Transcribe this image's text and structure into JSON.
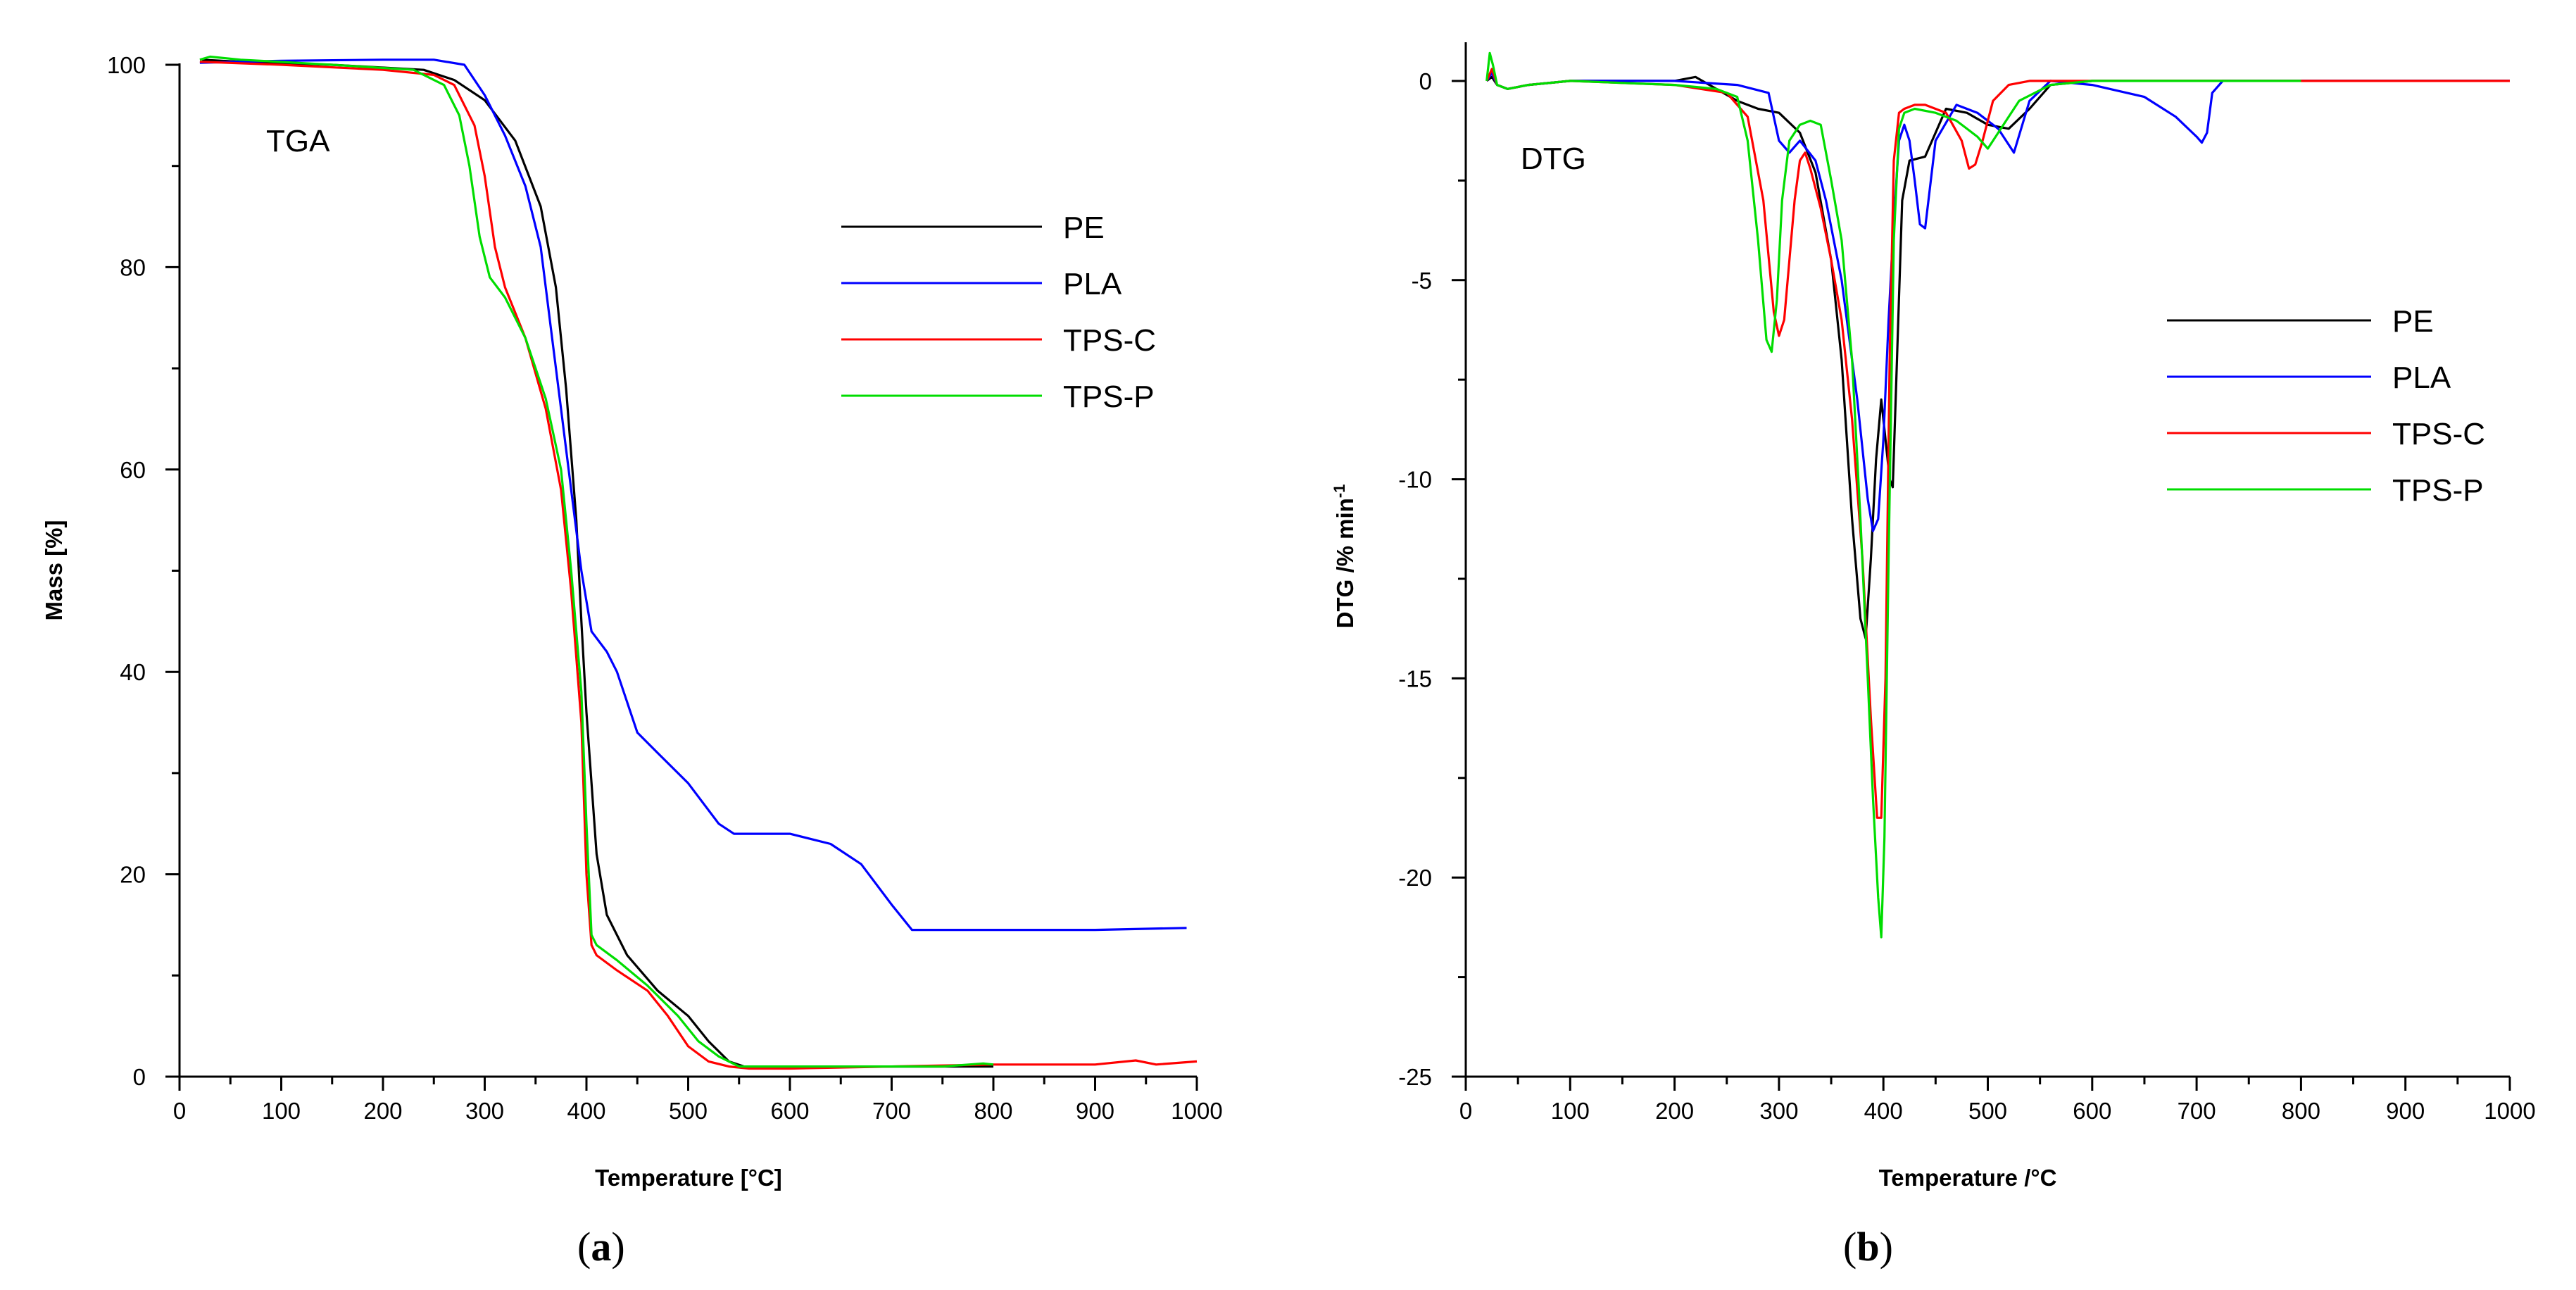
{
  "chart_data": [
    {
      "type": "line",
      "panel_label": "a",
      "title": "TGA",
      "xlabel": "Temperature [°C]",
      "ylabel": "Mass [%]",
      "xlim": [
        0,
        1000
      ],
      "ylim": [
        0,
        100
      ],
      "xticks": [
        0,
        100,
        200,
        300,
        400,
        500,
        600,
        700,
        800,
        900,
        1000
      ],
      "yticks": [
        0,
        20,
        40,
        60,
        80,
        100
      ],
      "legend_position": "top-right",
      "series": [
        {
          "name": "PE",
          "color": "#000000",
          "x": [
            22,
            60,
            150,
            240,
            270,
            300,
            330,
            355,
            370,
            380,
            390,
            395,
            400,
            405,
            410,
            420,
            440,
            470,
            500,
            520,
            540,
            555,
            600,
            700,
            800
          ],
          "y": [
            100.5,
            100.3,
            100,
            99.5,
            98.5,
            96.5,
            92.5,
            86,
            78,
            68,
            55,
            45,
            36,
            29,
            22,
            16,
            12,
            8.5,
            6,
            3.5,
            1.5,
            1,
            1,
            1,
            1
          ]
        },
        {
          "name": "PLA",
          "color": "#0000ff",
          "x": [
            20,
            100,
            200,
            250,
            280,
            300,
            320,
            340,
            355,
            365,
            375,
            385,
            395,
            405,
            420,
            430,
            450,
            470,
            500,
            530,
            545,
            600,
            640,
            670,
            700,
            720,
            800,
            900,
            990
          ],
          "y": [
            100.2,
            100.4,
            100.5,
            100.5,
            100,
            97,
            93,
            88,
            82,
            74,
            66,
            58,
            50,
            44,
            42,
            40,
            34,
            32,
            29,
            25,
            24,
            24,
            23,
            21,
            17,
            14.5,
            14.5,
            14.5,
            14.7
          ]
        },
        {
          "name": "TPS-C",
          "color": "#ff0000",
          "x": [
            20,
            100,
            200,
            250,
            270,
            290,
            300,
            310,
            320,
            340,
            360,
            375,
            385,
            395,
            400,
            405,
            410,
            430,
            460,
            480,
            500,
            520,
            540,
            560,
            600,
            700,
            800,
            900,
            940,
            960,
            1000
          ],
          "y": [
            100.3,
            100,
            99.5,
            99,
            98,
            94,
            89,
            82,
            78,
            73,
            66,
            58,
            48,
            35,
            20,
            13,
            12,
            10.5,
            8.5,
            6,
            3,
            1.5,
            1,
            0.8,
            0.8,
            1,
            1.2,
            1.2,
            1.6,
            1.2,
            1.5
          ]
        },
        {
          "name": "TPS-P",
          "color": "#00dd00",
          "x": [
            20,
            30,
            60,
            150,
            230,
            260,
            275,
            285,
            295,
            305,
            320,
            340,
            360,
            375,
            385,
            395,
            400,
            405,
            410,
            430,
            460,
            490,
            510,
            530,
            550,
            570,
            650,
            750,
            790,
            800
          ],
          "y": [
            100.5,
            100.8,
            100.5,
            100,
            99.5,
            98,
            95,
            90,
            83,
            79,
            77,
            73,
            67,
            60,
            50,
            38,
            25,
            14,
            13,
            11.5,
            9,
            6,
            3.5,
            2,
            1,
            1,
            1,
            1,
            1.3,
            1.2
          ]
        }
      ]
    },
    {
      "type": "line",
      "panel_label": "b",
      "title": "DTG",
      "xlabel": "Temperature /°C",
      "ylabel_main": "DTG /% min",
      "ylabel_sup": "-1",
      "xlim": [
        0,
        1000
      ],
      "ylim": [
        -25,
        0.6
      ],
      "xticks": [
        0,
        100,
        200,
        300,
        400,
        500,
        600,
        700,
        800,
        900,
        1000
      ],
      "yticks": [
        0,
        -5,
        -10,
        -15,
        -20,
        -25
      ],
      "legend_position": "upper-right",
      "series": [
        {
          "name": "PE",
          "color": "#000000",
          "x": [
            20,
            25,
            30,
            40,
            60,
            100,
            150,
            200,
            220,
            240,
            260,
            280,
            300,
            320,
            335,
            350,
            360,
            370,
            378,
            383,
            388,
            393,
            398,
            402,
            406,
            409,
            413,
            418,
            425,
            440,
            460,
            480,
            500,
            520,
            540,
            560,
            600,
            800,
            1000
          ],
          "y": [
            0,
            0.1,
            -0.1,
            -0.2,
            -0.1,
            0,
            0,
            0,
            0.1,
            -0.2,
            -0.5,
            -0.7,
            -0.8,
            -1.3,
            -2.3,
            -4.5,
            -7,
            -11,
            -13.5,
            -14,
            -12,
            -9.5,
            -8,
            -9,
            -10,
            -10.2,
            -7,
            -3,
            -2,
            -1.9,
            -0.7,
            -0.8,
            -1.1,
            -1.2,
            -0.7,
            -0.1,
            0,
            0,
            0
          ]
        },
        {
          "name": "PLA",
          "color": "#0000ff",
          "x": [
            20,
            25,
            30,
            40,
            60,
            100,
            200,
            260,
            290,
            300,
            310,
            320,
            335,
            345,
            360,
            375,
            385,
            390,
            395,
            400,
            405,
            410,
            415,
            420,
            425,
            430,
            435,
            440,
            450,
            470,
            490,
            510,
            525,
            540,
            560,
            600,
            650,
            680,
            700,
            705,
            710,
            715,
            725,
            800,
            900,
            1000
          ],
          "y": [
            0,
            0.2,
            -0.1,
            -0.2,
            -0.1,
            0,
            0,
            -0.1,
            -0.3,
            -1.5,
            -1.8,
            -1.5,
            -2,
            -3,
            -5,
            -8,
            -10.5,
            -11.3,
            -11,
            -9,
            -6,
            -3.5,
            -1.5,
            -1.1,
            -1.5,
            -2.5,
            -3.6,
            -3.7,
            -1.5,
            -0.6,
            -0.8,
            -1.2,
            -1.8,
            -0.5,
            0,
            -0.1,
            -0.4,
            -0.9,
            -1.4,
            -1.55,
            -1.3,
            -0.3,
            0,
            0,
            0,
            0
          ]
        },
        {
          "name": "TPS-C",
          "color": "#ff0000",
          "x": [
            20,
            25,
            30,
            40,
            60,
            100,
            200,
            250,
            270,
            285,
            295,
            300,
            305,
            310,
            315,
            320,
            325,
            330,
            340,
            350,
            360,
            370,
            380,
            388,
            394,
            398,
            402,
            406,
            410,
            415,
            420,
            430,
            440,
            460,
            475,
            482,
            488,
            495,
            505,
            520,
            540,
            560,
            1000
          ],
          "y": [
            0,
            0.3,
            -0.1,
            -0.2,
            -0.1,
            0,
            -0.1,
            -0.3,
            -0.9,
            -3,
            -5.8,
            -6.4,
            -6,
            -4.5,
            -3,
            -2,
            -1.8,
            -2.2,
            -3.2,
            -4.5,
            -6,
            -8.5,
            -12,
            -16,
            -18.5,
            -18.5,
            -15,
            -7,
            -2,
            -0.8,
            -0.7,
            -0.6,
            -0.6,
            -0.8,
            -1.5,
            -2.2,
            -2.1,
            -1.5,
            -0.5,
            -0.1,
            0,
            0,
            0
          ]
        },
        {
          "name": "TPS-P",
          "color": "#00dd00",
          "x": [
            20,
            23,
            26,
            30,
            40,
            60,
            100,
            200,
            240,
            260,
            270,
            280,
            288,
            293,
            298,
            303,
            310,
            320,
            330,
            340,
            350,
            360,
            370,
            378,
            385,
            390,
            395,
            398,
            401,
            405,
            410,
            415,
            420,
            430,
            450,
            470,
            490,
            500,
            510,
            530,
            560,
            600,
            700,
            800
          ],
          "y": [
            0,
            0.7,
            0.4,
            -0.1,
            -0.2,
            -0.1,
            0,
            -0.1,
            -0.2,
            -0.4,
            -1.5,
            -4,
            -6.5,
            -6.8,
            -5.5,
            -3,
            -1.5,
            -1.1,
            -1,
            -1.1,
            -2.5,
            -4,
            -7,
            -11,
            -15,
            -18,
            -20.5,
            -21.5,
            -19,
            -12,
            -4,
            -1.2,
            -0.8,
            -0.7,
            -0.8,
            -1,
            -1.4,
            -1.7,
            -1.3,
            -0.5,
            -0.1,
            0,
            0,
            0
          ]
        }
      ]
    }
  ]
}
